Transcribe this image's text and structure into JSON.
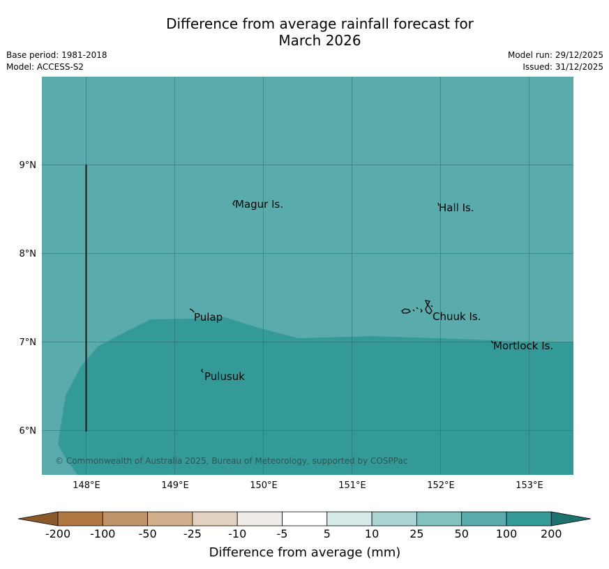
{
  "header": {
    "title_line1": "Difference from average rainfall forecast for",
    "title_line2": "March 2026",
    "base_period": "Base period: 1981-2018",
    "model": "Model: ACCESS-S2",
    "model_run": "Model run: 29/12/2025",
    "issued": "Issued: 31/12/2025"
  },
  "map": {
    "lon_ticks": [
      "148°E",
      "149°E",
      "150°E",
      "151°E",
      "152°E",
      "153°E"
    ],
    "lat_ticks": [
      "9°N",
      "8°N",
      "7°N",
      "6°N"
    ],
    "places": [
      {
        "name": "Magur Is."
      },
      {
        "name": "Hall Is."
      },
      {
        "name": "Pulap"
      },
      {
        "name": "Chuuk Is."
      },
      {
        "name": "Mortlock Is."
      },
      {
        "name": "Pulusuk"
      }
    ],
    "copyright": "© Commonwealth of Australia 2025, Bureau of Meteorology, supported by COSPPac",
    "regions": [
      {
        "category": "50 to 100",
        "color": "#5aabac"
      },
      {
        "category": "100 to 200",
        "color": "#339a98"
      }
    ]
  },
  "colorbar": {
    "labels": [
      "-200",
      "-100",
      "-50",
      "-25",
      "-10",
      "-5",
      "5",
      "10",
      "25",
      "50",
      "100",
      "200"
    ],
    "colors": [
      "#8b5a2b",
      "#b07741",
      "#c09469",
      "#d2b08e",
      "#e3d1bf",
      "#efebe6",
      "#ffffff",
      "#d6eae9",
      "#abd4d2",
      "#83c1bf",
      "#5aabac",
      "#339a98",
      "#1d716f"
    ],
    "title": "Difference from average (mm)"
  }
}
